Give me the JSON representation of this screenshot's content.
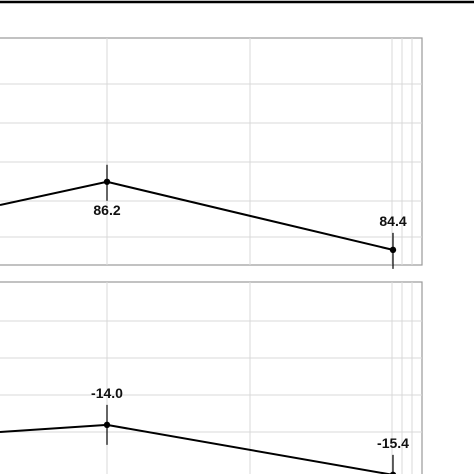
{
  "chart_data": [
    {
      "type": "line",
      "title": "",
      "xlabel": "",
      "ylabel": "",
      "grid": true,
      "points": [
        {
          "x": "",
          "y": null
        },
        {
          "x": "",
          "y": 86.2,
          "label": "86.2",
          "label_position": "below"
        },
        {
          "x": "",
          "y": 84.4,
          "label": "84.4",
          "label_position": "above"
        }
      ],
      "ylim": [
        84.0,
        90.0
      ]
    },
    {
      "type": "line",
      "title": "",
      "xlabel": "",
      "ylabel": "",
      "grid": true,
      "points": [
        {
          "x": "",
          "y": null
        },
        {
          "x": "",
          "y": -14.0,
          "label": "-14.0",
          "label_position": "above"
        },
        {
          "x": "",
          "y": -15.4,
          "label": "-15.4",
          "label_position": "above"
        }
      ],
      "ylim": [
        -15.6,
        -10.0
      ]
    }
  ]
}
